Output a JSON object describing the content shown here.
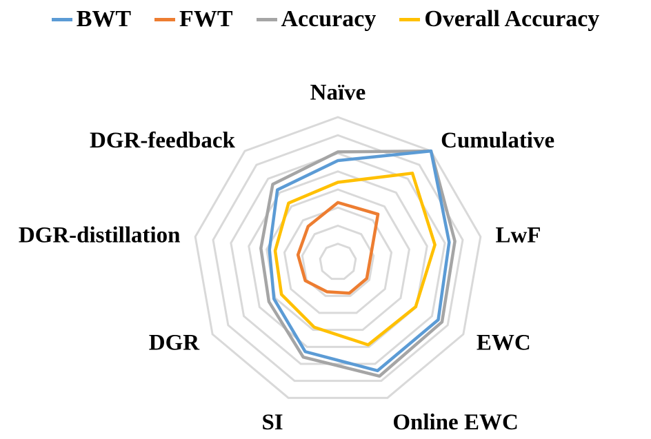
{
  "chart_data": {
    "type": "radar",
    "categories": [
      "Naïve",
      "Cumulative",
      "LwF",
      "EWC",
      "Online EWC",
      "SI",
      "DGR",
      "DGR-distillation",
      "DGR-feedback"
    ],
    "series": [
      {
        "name": "BWT",
        "color": "#5B9BD5",
        "values": [
          0.7,
          1.0,
          0.78,
          0.8,
          0.8,
          0.66,
          0.51,
          0.48,
          0.65
        ]
      },
      {
        "name": "FWT",
        "color": "#ED7D31",
        "values": [
          0.41,
          0.43,
          0.23,
          0.23,
          0.23,
          0.22,
          0.26,
          0.28,
          0.32
        ]
      },
      {
        "name": "Accuracy",
        "color": "#A5A5A5",
        "values": [
          0.76,
          1.0,
          0.82,
          0.83,
          0.84,
          0.7,
          0.55,
          0.54,
          0.7
        ]
      },
      {
        "name": "Overall Accuracy",
        "color": "#FFC000",
        "values": [
          0.55,
          0.8,
          0.68,
          0.62,
          0.61,
          0.48,
          0.45,
          0.44,
          0.53
        ]
      }
    ],
    "rlim": [
      0,
      1
    ],
    "ring_count": 8,
    "grid": true,
    "legend_position": "top"
  }
}
